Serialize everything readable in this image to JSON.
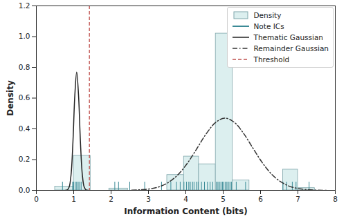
{
  "chart_data": {
    "type": "histogram",
    "x_label": "Information Content (bits)",
    "y_label": "Density",
    "xlim": [
      0,
      8
    ],
    "xticks": [
      0,
      1,
      2,
      3,
      4,
      5,
      6,
      7,
      8
    ],
    "ylim": [
      0,
      1.2
    ],
    "yticks": [
      {
        "value": 0,
        "label": "0.0"
      },
      {
        "value": 0.2,
        "label": "0.2"
      },
      {
        "value": 0.4,
        "label": "0.4"
      },
      {
        "value": 0.6,
        "label": "0.6"
      },
      {
        "value": 0.8,
        "label": "0.8"
      },
      {
        "value": 1.0,
        "label": "1.0"
      },
      {
        "value": 1.2,
        "label": "1.2"
      }
    ],
    "legend": "upper right",
    "series": [
      {
        "name": "Density",
        "type": "histogram",
        "color": "#dcefef",
        "bins": [
          0.5,
          1.0,
          1.45,
          1.95,
          2.45,
          2.95,
          3.5,
          3.95,
          4.35,
          4.8,
          5.25,
          5.7,
          6.15,
          6.6,
          7.0,
          7.45
        ],
        "values": [
          0.025,
          0.225,
          0,
          0.012,
          0,
          0,
          0.1,
          0.22,
          0.17,
          1.02,
          0.065,
          0,
          0,
          0.135,
          0.015
        ]
      },
      {
        "name": "Note ICs",
        "type": "rug",
        "color": "#3b8a96",
        "x": [
          0.7,
          0.97,
          1.0,
          1.04,
          1.08,
          1.12,
          1.16,
          1.2,
          2.1,
          2.2,
          2.5,
          2.9,
          3.35,
          3.6,
          3.75,
          3.85,
          3.95,
          4.02,
          4.08,
          4.12,
          4.18,
          4.22,
          4.28,
          4.33,
          4.42,
          4.5,
          4.58,
          4.65,
          4.72,
          4.82,
          4.86,
          4.9,
          4.94,
          4.98,
          5.02,
          5.06,
          5.1,
          5.14,
          5.18,
          5.22,
          5.35,
          5.6,
          6.6,
          6.7,
          6.85,
          6.95,
          7.3
        ]
      },
      {
        "name": "Thematic Gaussian",
        "type": "line",
        "color": "#222222",
        "line_style": "solid",
        "x": [
          0.78,
          0.83,
          0.88,
          0.93,
          0.98,
          1.03,
          1.08,
          1.13,
          1.18,
          1.23,
          1.28,
          1.33,
          1.38
        ],
        "values": [
          0,
          0.003,
          0.022,
          0.104,
          0.316,
          0.617,
          0.77,
          0.617,
          0.316,
          0.104,
          0.022,
          0.003,
          0
        ]
      },
      {
        "name": "Remainder Gaussian",
        "type": "line",
        "color": "#333333",
        "line_style": "dashdot",
        "x": [
          2.55,
          2.8,
          3.05,
          3.3,
          3.55,
          3.8,
          4.05,
          4.3,
          4.55,
          4.8,
          5.05,
          5.3,
          5.55,
          5.8,
          6.05,
          6.3,
          6.55,
          6.8,
          7.05,
          7.3,
          7.55,
          7.8
        ],
        "values": [
          0.001,
          0.004,
          0.01,
          0.024,
          0.054,
          0.104,
          0.179,
          0.273,
          0.369,
          0.442,
          0.47,
          0.442,
          0.369,
          0.273,
          0.179,
          0.104,
          0.054,
          0.024,
          0.01,
          0.004,
          0.001,
          0
        ]
      },
      {
        "name": "Threshold",
        "type": "vline",
        "color": "#c0504d",
        "line_style": "dashed",
        "x": 1.42
      }
    ]
  }
}
